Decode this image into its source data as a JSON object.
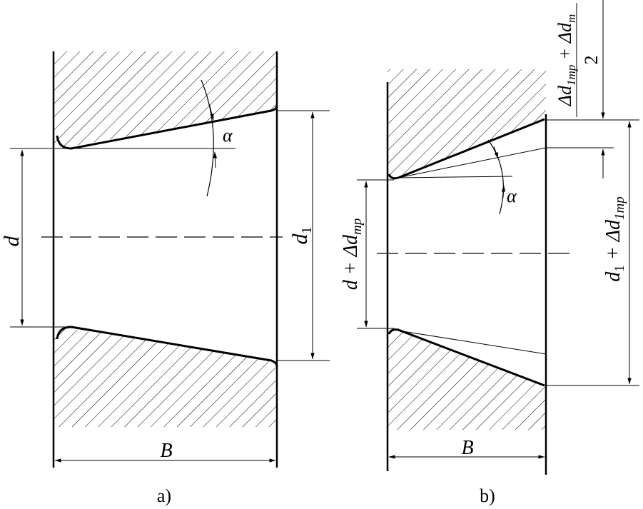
{
  "figure_a": {
    "label": "a)",
    "dim_bore": "d",
    "dim_large": "d",
    "dim_large_sub": "1",
    "dim_width": "B",
    "angle": "α"
  },
  "figure_b": {
    "label": "b)",
    "dim_bore": "d + Δd",
    "dim_bore_sub": "mp",
    "dim_large": "d",
    "dim_large_sub1": "1",
    "dim_large_mid": " + Δd",
    "dim_large_sub2": "1mp",
    "dim_width": "B",
    "angle": "α",
    "frac_num_a": "Δd",
    "frac_num_a_sub": "1mp",
    "frac_num_b": " + Δd",
    "frac_num_b_sub": "m",
    "frac_den": "2"
  },
  "colors": {
    "line": "#000000",
    "background": "#ffffff"
  }
}
